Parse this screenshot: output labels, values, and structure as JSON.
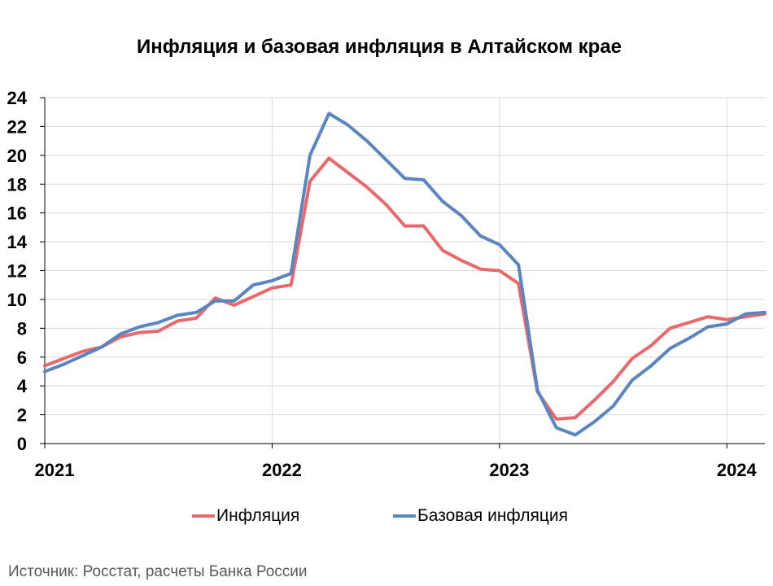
{
  "chart_data": {
    "type": "line",
    "title": "Инфляция и базовая инфляция в Алтайском крае",
    "ylim": [
      0,
      24
    ],
    "yticks": [
      0,
      2,
      4,
      6,
      8,
      10,
      12,
      14,
      16,
      18,
      20,
      22,
      24
    ],
    "xlim": [
      2021.0,
      2024.167
    ],
    "xticks": [
      "2021",
      "2022",
      "2023",
      "2024"
    ],
    "grid": true,
    "legend_position": "bottom",
    "x": [
      "2021-01",
      "2021-02",
      "2021-03",
      "2021-04",
      "2021-05",
      "2021-06",
      "2021-07",
      "2021-08",
      "2021-09",
      "2021-10",
      "2021-11",
      "2021-12",
      "2022-01",
      "2022-02",
      "2022-03",
      "2022-04",
      "2022-05",
      "2022-06",
      "2022-07",
      "2022-08",
      "2022-09",
      "2022-10",
      "2022-11",
      "2022-12",
      "2023-01",
      "2023-02",
      "2023-03",
      "2023-04",
      "2023-05",
      "2023-06",
      "2023-07",
      "2023-08",
      "2023-09",
      "2023-10",
      "2023-11",
      "2023-12",
      "2024-01",
      "2024-02",
      "2024-03"
    ],
    "series": [
      {
        "name": "Инфляция",
        "color": "#e8696b",
        "values": [
          5.4,
          5.9,
          6.4,
          6.7,
          7.4,
          7.7,
          7.8,
          8.5,
          8.7,
          10.1,
          9.6,
          10.2,
          10.8,
          11.0,
          18.2,
          19.8,
          18.8,
          17.8,
          16.6,
          15.1,
          15.1,
          13.4,
          12.7,
          12.1,
          12.0,
          11.1,
          3.6,
          1.7,
          1.8,
          3.0,
          4.3,
          5.9,
          6.8,
          8.0,
          8.4,
          8.8,
          8.6,
          8.8,
          9.0
        ]
      },
      {
        "name": "Базовая инфляция",
        "color": "#5b85bf",
        "values": [
          5.0,
          5.5,
          6.1,
          6.7,
          7.6,
          8.1,
          8.4,
          8.9,
          9.1,
          9.9,
          9.9,
          11.0,
          11.3,
          11.8,
          20.0,
          22.9,
          22.1,
          21.0,
          19.7,
          18.4,
          18.3,
          16.8,
          15.8,
          14.4,
          13.8,
          12.4,
          3.7,
          1.1,
          0.6,
          1.5,
          2.6,
          4.4,
          5.4,
          6.6,
          7.3,
          8.1,
          8.3,
          9.0,
          9.1
        ]
      }
    ]
  },
  "source_text": "Источник: Росстат, расчеты Банка России"
}
